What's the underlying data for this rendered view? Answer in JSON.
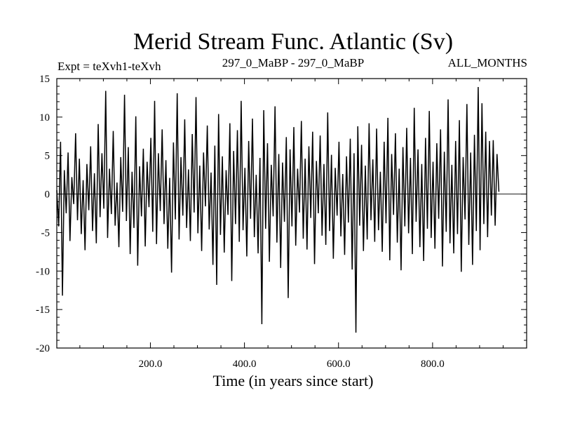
{
  "chart_data": {
    "type": "line",
    "title": "Merid Stream Func. Atlantic (Sv)",
    "subtitle_left": "Expt = teXvh1-teXvh",
    "subtitle_center": "297_0_MaBP - 297_0_MaBP",
    "subtitle_right": "ALL_MONTHS",
    "xlabel": "Time (in years since start)",
    "ylabel": "",
    "xlim": [
      1,
      1000
    ],
    "ylim": [
      -20,
      15
    ],
    "x_ticks": [
      200,
      400,
      600,
      800
    ],
    "x_tick_labels": [
      "200.0",
      "400.0",
      "600.0",
      "800.0"
    ],
    "y_ticks": [
      15,
      10,
      5,
      0,
      -5,
      -10,
      -15,
      -20
    ],
    "y_tick_labels": [
      "15",
      "10",
      "5",
      "0",
      "-5",
      "-10",
      "-15",
      "-20"
    ],
    "zero_line": true,
    "series": [
      {
        "name": "Merid Stream Func. Atlantic",
        "x_start": 1,
        "x_step": 4,
        "values": [
          0.5,
          -4.2,
          6.8,
          -13.2,
          3.1,
          -2.5,
          5.4,
          -6.1,
          2.2,
          -1.3,
          7.9,
          -3.4,
          4.6,
          -5.2,
          1.8,
          -7.3,
          3.9,
          -2.1,
          6.2,
          -4.8,
          2.7,
          -6.4,
          9.1,
          -3.0,
          5.3,
          -1.9,
          13.4,
          -5.7,
          3.3,
          -2.6,
          8.2,
          -4.1,
          1.5,
          -6.9,
          4.8,
          -2.3,
          12.9,
          -3.5,
          6.1,
          -7.8,
          2.9,
          -4.4,
          10.1,
          -9.3,
          3.6,
          -2.9,
          5.9,
          -6.8,
          4.2,
          -1.7,
          7.3,
          -4.9,
          12.1,
          -6.5,
          5.3,
          -2.2,
          8.4,
          -3.9,
          4.4,
          -7.1,
          2.1,
          -10.2,
          6.7,
          -3.3,
          13.1,
          -5.9,
          4.8,
          -2.8,
          9.7,
          -4.4,
          3.2,
          -6.1,
          7.8,
          -2.4,
          12.6,
          -5.1,
          3.7,
          -7.4,
          5.4,
          -1.6,
          8.9,
          -4.6,
          2.8,
          -9.2,
          6.3,
          -11.8,
          10.4,
          -5.3,
          4.9,
          -7.6,
          3.1,
          -2.7,
          9.2,
          -11.3,
          5.6,
          -3.9,
          8.3,
          -6.2,
          12.1,
          -4.7,
          3.4,
          -8.1,
          6.9,
          -3.2,
          9.8,
          -5.6,
          2.5,
          -7.7,
          4.7,
          -16.9,
          10.9,
          -4.5,
          6.6,
          -8.8,
          3.8,
          -2.9,
          11.4,
          -6.3,
          5.2,
          -9.6,
          4.1,
          -3.6,
          7.4,
          -13.5,
          5.8,
          -4.2,
          8.7,
          -6.7,
          3.3,
          -2.4,
          9.5,
          -5.8,
          4.6,
          -7.2,
          6.2,
          -3.1,
          8.1,
          -9.1,
          4.3,
          -2.5,
          7.6,
          -5.4,
          3.9,
          -6.6,
          10.6,
          -4.8,
          5.1,
          -8.4,
          3.4,
          -2.8,
          6.8,
          -5.5,
          2.6,
          -7.9,
          4.9,
          -3.7,
          7.2,
          -9.8,
          5.3,
          -18.0,
          8.8,
          -4.1,
          6.4,
          -7.4,
          3.7,
          -5.9,
          9.2,
          -3.4,
          4.5,
          -6.2,
          8.5,
          -4.7,
          2.9,
          -7.5,
          6.8,
          -3.8,
          9.9,
          -8.6,
          5.2,
          -2.7,
          7.9,
          -6.3,
          3.3,
          -9.9,
          6.1,
          -4.2,
          8.6,
          -5.1,
          4.7,
          -7.8,
          11.2,
          -3.6,
          5.8,
          -6.9,
          3.9,
          -8.7,
          7.3,
          -4.5,
          10.8,
          -5.7,
          4.2,
          -7.1,
          6.6,
          -3.2,
          8.4,
          -9.4,
          5.5,
          -4.9,
          12.3,
          -6.4,
          3.8,
          -7.7,
          6.9,
          -5.2,
          9.6,
          -10.1,
          4.8,
          -3.3,
          11.7,
          -6.6,
          5.4,
          -9.2,
          7.7,
          -4.8,
          13.9,
          -7.3,
          11.8,
          -3.9,
          8.1,
          -5.6,
          6.9,
          -2.8,
          7.0,
          -4.1,
          5.2,
          0.3
        ]
      }
    ]
  }
}
